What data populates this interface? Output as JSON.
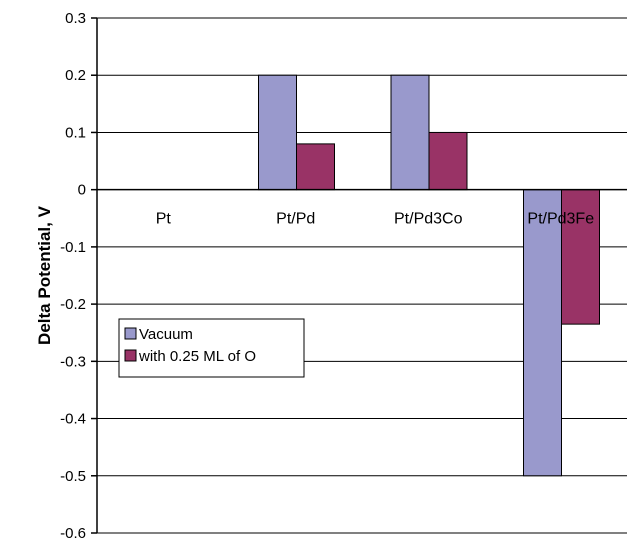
{
  "chart_data": {
    "type": "bar",
    "categories": [
      "Pt",
      "Pt/Pd",
      "Pt/Pd3Co",
      "Pt/Pd3Fe"
    ],
    "series": [
      {
        "name": "Vacuum",
        "values": [
          0,
          0.2,
          0.2,
          -0.5
        ],
        "color": "#9999cc"
      },
      {
        "name": "with 0.25 ML of O",
        "values": [
          0,
          0.08,
          0.1,
          -0.235
        ],
        "color": "#993366"
      }
    ],
    "ylabel": "Delta Potential, V",
    "xlabel": "",
    "ylim": [
      -0.6,
      0.3
    ],
    "yticks": [
      0.3,
      0.2,
      0.1,
      0,
      -0.1,
      -0.2,
      -0.3,
      -0.4,
      -0.5,
      -0.6
    ],
    "ytick_labels": [
      "0.3",
      "0.2",
      "0.1",
      "0",
      "-0.1",
      "-0.2",
      "-0.3",
      "-0.4",
      "-0.5",
      "-0.6"
    ],
    "grid": true,
    "legend_position": "left-lower"
  }
}
